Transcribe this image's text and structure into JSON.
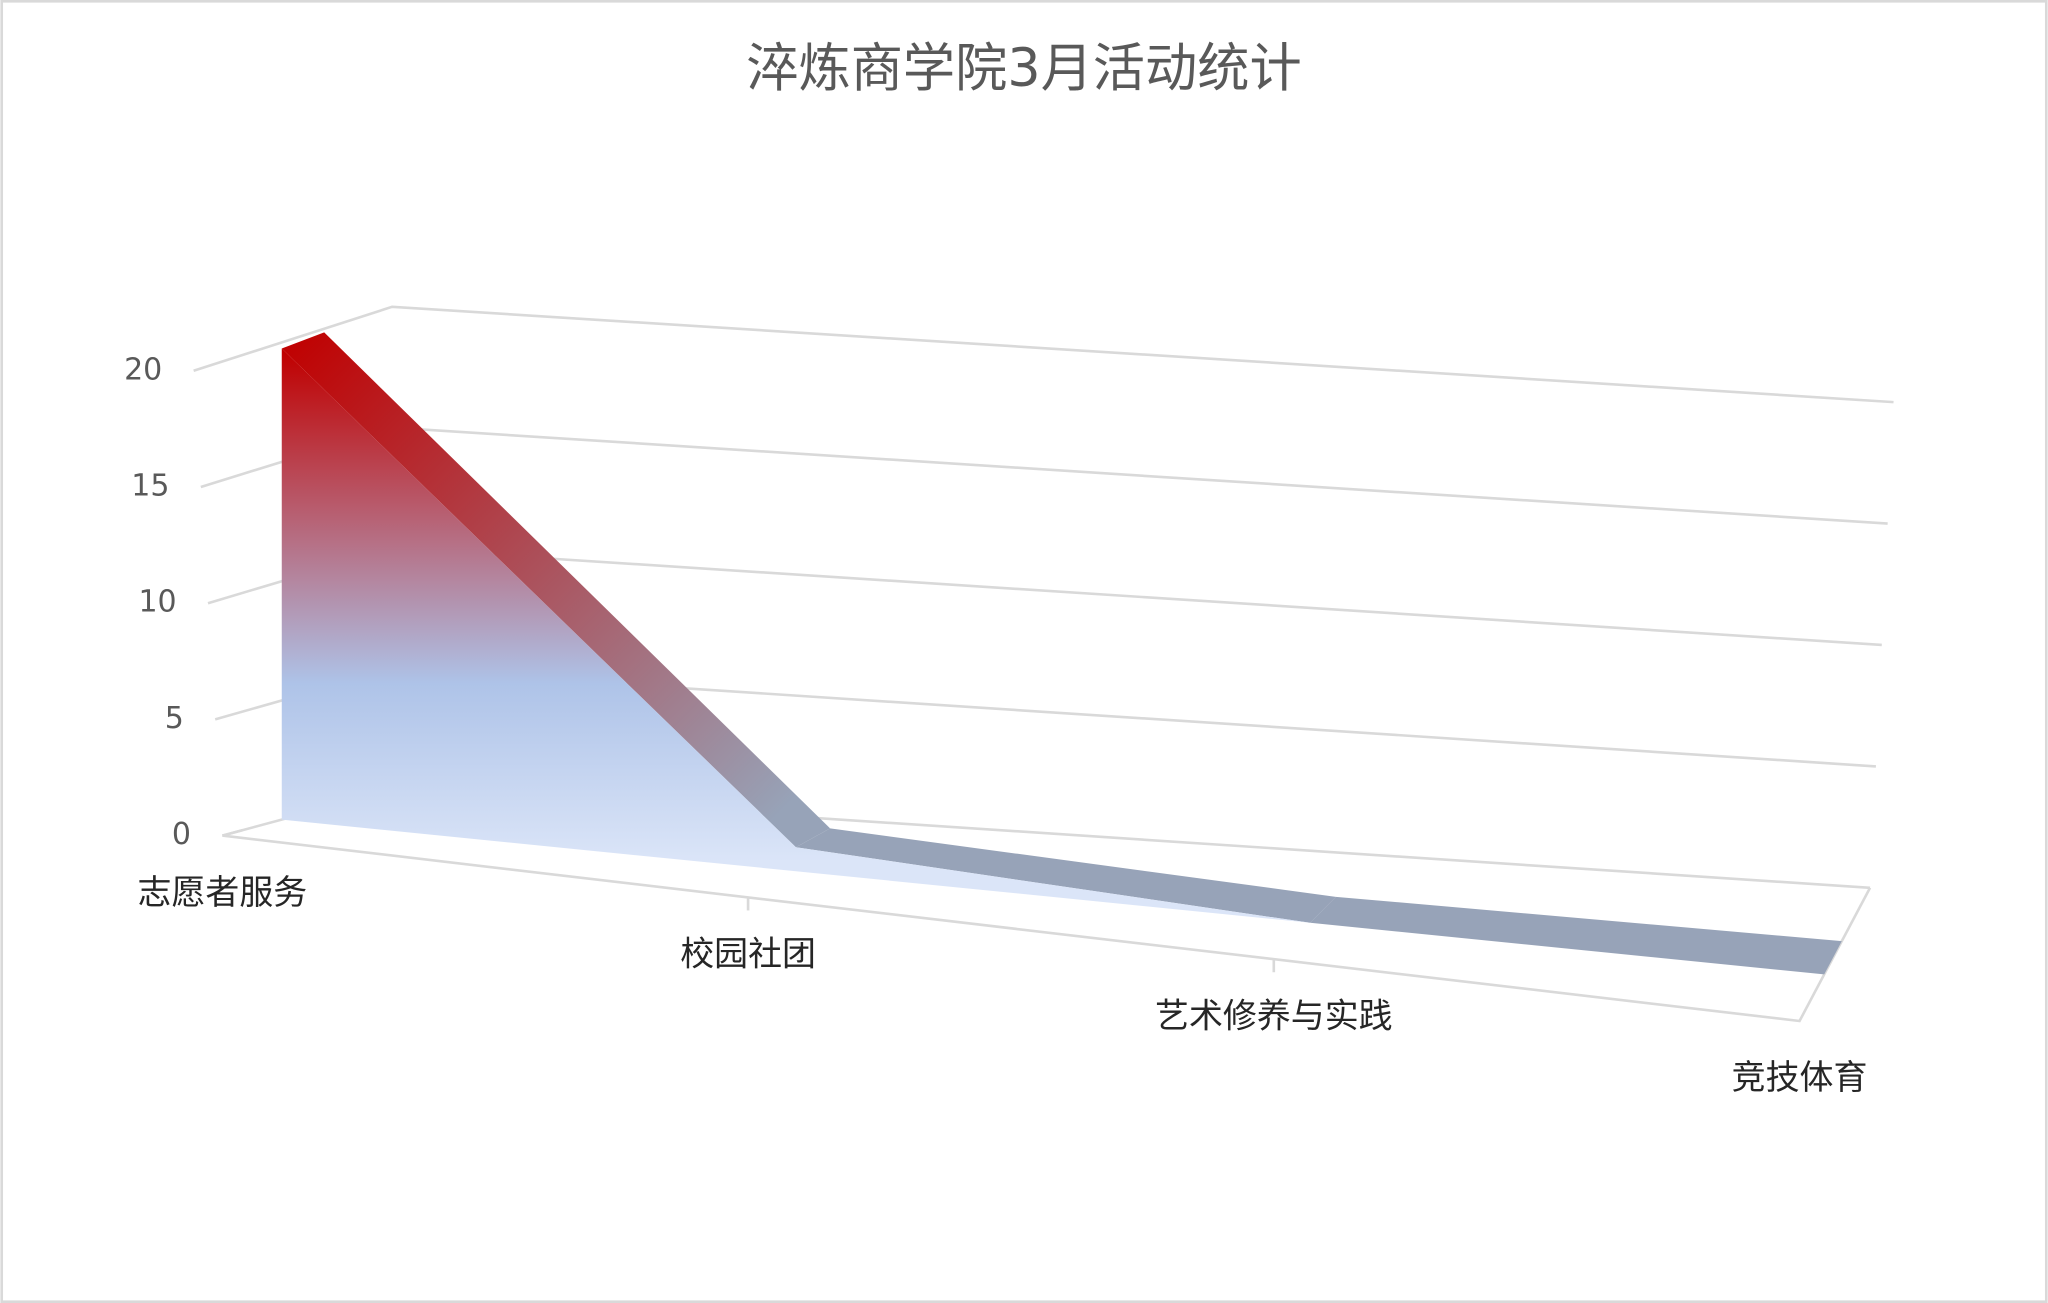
{
  "chart_data": {
    "type": "line3d",
    "title": "淬炼商学院3月活动统计",
    "categories": [
      "志愿者服务",
      "校园社团",
      "艺术修养与实践",
      "竞技体育"
    ],
    "values": [
      20,
      1,
      0,
      0
    ],
    "color": "#97a3b8",
    "gradient_colors": [
      "#c00000",
      "#aec3e8"
    ],
    "ylim": [
      0,
      20
    ],
    "yticks": [
      0,
      5,
      10,
      15,
      20
    ],
    "grid": true
  }
}
